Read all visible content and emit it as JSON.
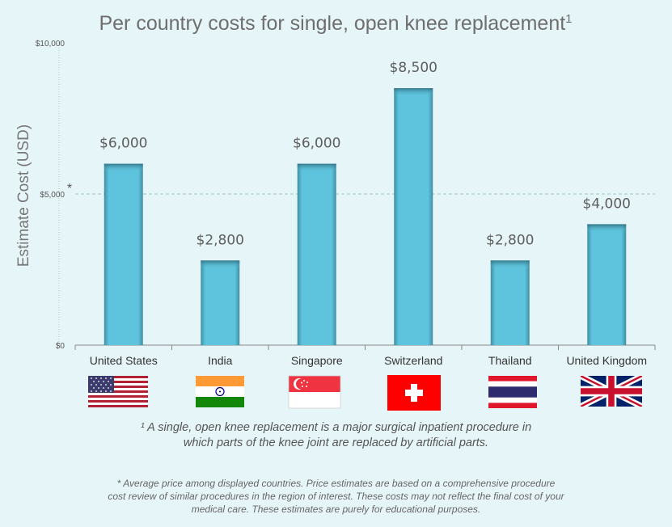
{
  "chart_data": {
    "type": "bar",
    "title": "Per country costs for single, open knee replacement",
    "title_superscript": "1",
    "ylabel": "Estimate Cost (USD)",
    "ylim": [
      0,
      10000
    ],
    "yticks": [
      {
        "value": 0,
        "label": "$0"
      },
      {
        "value": 5000,
        "label": "$5,000"
      },
      {
        "value": 10000,
        "label": "$10,000"
      }
    ],
    "reference_line": {
      "value": 5000,
      "marker": "*"
    },
    "categories": [
      "United States",
      "India",
      "Singapore",
      "Switzerland",
      "Thailand",
      "United Kingdom"
    ],
    "values": [
      6000,
      2800,
      6000,
      8500,
      2800,
      4000
    ],
    "value_labels": [
      "$6,000",
      "$2,800",
      "$6,000",
      "$8,500",
      "$2,800",
      "$4,000"
    ],
    "flags": [
      "us-flag-icon",
      "india-flag-icon",
      "singapore-flag-icon",
      "switzerland-flag-icon",
      "thailand-flag-icon",
      "uk-flag-icon"
    ],
    "colors": {
      "bar": "#5ec4dd",
      "bar_edge": "#2f7f94",
      "reference": "#9fc7bd"
    }
  },
  "footnotes": {
    "one": [
      "¹ A single, open knee replacement is a major surgical inpatient procedure in",
      "which parts of the knee joint are replaced by artificial parts."
    ],
    "two": [
      "* Average price among displayed countries. Price estimates are based on a comprehensive procedure",
      "cost review of similar procedures in the region of interest. These costs may not reflect the final cost of your",
      "medical care. These estimates are purely for educational purposes."
    ]
  }
}
